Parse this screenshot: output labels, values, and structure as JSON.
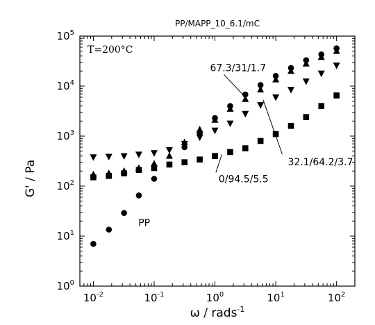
{
  "chart_data": {
    "type": "scatter",
    "title": "PP/MAPP_10_6.1/mC",
    "xlabel": "ω / rads",
    "xlabel_superscript": "-1",
    "ylabel": "G' / Pa",
    "xscale": "log",
    "yscale": "log",
    "xlim": [
      0.006,
      200
    ],
    "ylim": [
      1,
      100000
    ],
    "x_ticks": [
      {
        "value": 0.01,
        "base": "10",
        "exp": "-2"
      },
      {
        "value": 0.1,
        "base": "10",
        "exp": "-1"
      },
      {
        "value": 1,
        "base": "10",
        "exp": "0"
      },
      {
        "value": 10,
        "base": "10",
        "exp": "1"
      },
      {
        "value": 100,
        "base": "10",
        "exp": "2"
      }
    ],
    "y_ticks": [
      {
        "value": 1,
        "base": "10",
        "exp": "0"
      },
      {
        "value": 10,
        "base": "10",
        "exp": "1"
      },
      {
        "value": 100,
        "base": "10",
        "exp": "2"
      },
      {
        "value": 1000,
        "base": "10",
        "exp": "3"
      },
      {
        "value": 10000,
        "base": "10",
        "exp": "4"
      },
      {
        "value": 100000,
        "base": "10",
        "exp": "5"
      }
    ],
    "grid": false,
    "legend": "none",
    "condition_label": "T=200°C",
    "series": [
      {
        "name": "PP",
        "marker": "circle",
        "color": "#000000",
        "x": [
          0.01,
          0.018,
          0.032,
          0.056,
          0.1,
          0.178,
          0.316,
          0.562,
          1,
          1.78,
          3.16,
          5.62,
          10,
          17.8,
          31.6,
          56.2,
          100
        ],
        "y": [
          7,
          13.5,
          29,
          65,
          140,
          270,
          600,
          1150,
          2300,
          4000,
          6800,
          10500,
          16000,
          23000,
          33000,
          43000,
          57000
        ]
      },
      {
        "name": "67.3/31/1.7",
        "marker": "triangle-up",
        "color": "#000000",
        "x": [
          0.01,
          0.018,
          0.032,
          0.056,
          0.1,
          0.178,
          0.316,
          0.562,
          1,
          1.78,
          3.16,
          5.62,
          10,
          17.8,
          31.6,
          56.2,
          100
        ],
        "y": [
          170,
          180,
          200,
          230,
          280,
          400,
          750,
          1350,
          2100,
          3500,
          5500,
          8500,
          13500,
          20000,
          28000,
          38000,
          50000
        ]
      },
      {
        "name": "32.1/64.2/3.7",
        "marker": "triangle-down",
        "color": "#000000",
        "x": [
          0.01,
          0.018,
          0.032,
          0.056,
          0.1,
          0.178,
          0.316,
          0.562,
          1,
          1.78,
          3.16,
          5.62,
          10,
          17.8,
          31.6,
          56.2,
          100
        ],
        "y": [
          380,
          390,
          400,
          430,
          460,
          530,
          700,
          950,
          1300,
          1800,
          2800,
          4200,
          6000,
          8500,
          12500,
          18000,
          26000
        ]
      },
      {
        "name": "0/94.5/5.5",
        "marker": "square",
        "color": "#000000",
        "x": [
          0.01,
          0.018,
          0.032,
          0.056,
          0.1,
          0.178,
          0.316,
          0.562,
          1,
          1.78,
          3.16,
          5.62,
          10,
          17.8,
          31.6,
          56.2,
          100
        ],
        "y": [
          150,
          160,
          180,
          210,
          230,
          270,
          300,
          340,
          400,
          480,
          570,
          800,
          1100,
          1600,
          2400,
          4000,
          6500
        ]
      }
    ],
    "annotations": [
      {
        "text": "67.3/31/1.7",
        "target_series": "67.3/31/1.7",
        "target": [
          3.16,
          6000
        ],
        "anchor": [
          0.83,
          20000
        ],
        "font": "sans"
      },
      {
        "text": "32.1/64.2/3.7",
        "target_series": "32.1/64.2/3.7",
        "target": [
          6.2,
          5300
        ],
        "anchor": [
          15.8,
          260
        ],
        "font": "sans"
      },
      {
        "text": "0/94.5/5.5",
        "target_series": "0/94.5/5.5",
        "target": [
          1.3,
          430
        ],
        "anchor": [
          1.15,
          120
        ],
        "font": "sans"
      },
      {
        "text": "PP",
        "target_series": "PP",
        "target": null,
        "anchor": [
          0.055,
          16
        ],
        "font": "sans"
      }
    ]
  }
}
